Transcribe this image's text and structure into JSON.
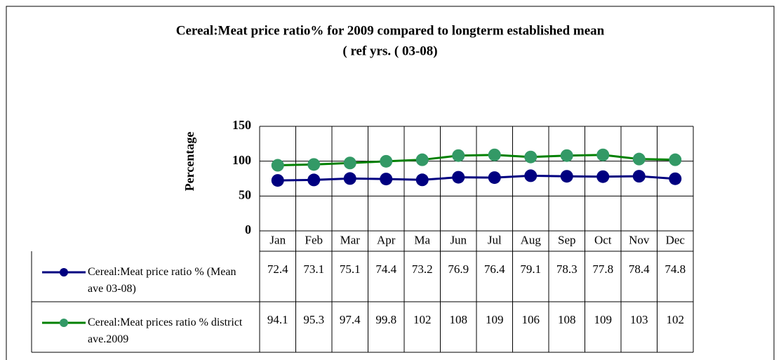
{
  "chart_data": {
    "type": "line",
    "title": "Cereal:Meat price ratio% for 2009 compared to longterm established mean",
    "subtitle": "( ref yrs. ( 03-08)",
    "y_label": "Percentage",
    "categories": [
      "Jan",
      "Feb",
      "Mar",
      "Apr",
      "Ma",
      "Jun",
      "Jul",
      "Aug",
      "Sep",
      "Oct",
      "Nov",
      "Dec"
    ],
    "series": [
      {
        "name": "Cereal:Meat price ratio % (Mean ave 03-08)",
        "color": "#000080",
        "marker_color": "#000080",
        "values": [
          72.4,
          73.1,
          75.1,
          74.4,
          73.2,
          76.9,
          76.4,
          79.1,
          78.3,
          77.8,
          78.4,
          74.8
        ]
      },
      {
        "name": "Cereal:Meat prices ratio % district ave.2009",
        "color": "#008000",
        "marker_color": "#339966",
        "values": [
          94.1,
          95.3,
          97.4,
          99.8,
          102,
          108,
          109,
          106,
          108,
          109,
          103,
          102
        ]
      }
    ],
    "ylim": [
      0,
      150
    ],
    "yticks": [
      0,
      50,
      100,
      150
    ],
    "grid": true,
    "data_table": true
  }
}
